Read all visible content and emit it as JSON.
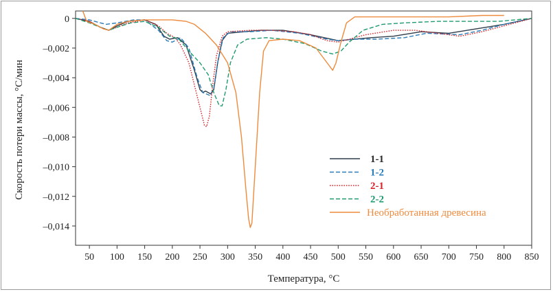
{
  "chart_data": {
    "type": "line",
    "title": "",
    "xlabel": "Температура, °С",
    "ylabel": "Скорость потери массы, °С/мин",
    "xlim": [
      25,
      850
    ],
    "ylim": [
      -0.0153,
      0.0005
    ],
    "xticks": [
      50,
      100,
      150,
      200,
      250,
      300,
      350,
      400,
      450,
      500,
      550,
      600,
      650,
      700,
      750,
      800,
      850
    ],
    "yticks": [
      0,
      -0.002,
      -0.004,
      -0.006,
      -0.008,
      -0.01,
      -0.012,
      -0.014
    ],
    "ytick_labels": [
      "0",
      "–0,002",
      "–0,004",
      "–0,006",
      "–0,008",
      "–0,010",
      "–0,012",
      "–0,014"
    ],
    "grid": false,
    "legend_position": "bottom-right",
    "series": [
      {
        "name": "1-1",
        "color": "#2f3c4a",
        "dash": "solid",
        "points": [
          [
            25,
            0
          ],
          [
            50,
            -0.0002
          ],
          [
            70,
            -0.0006
          ],
          [
            85,
            -0.0008
          ],
          [
            100,
            -0.0005
          ],
          [
            120,
            -0.0002
          ],
          [
            150,
            -0.0001
          ],
          [
            170,
            -0.0004
          ],
          [
            185,
            -0.0012
          ],
          [
            195,
            -0.0014
          ],
          [
            210,
            -0.0013
          ],
          [
            225,
            -0.0018
          ],
          [
            240,
            -0.0035
          ],
          [
            250,
            -0.0048
          ],
          [
            255,
            -0.005
          ],
          [
            260,
            -0.0049
          ],
          [
            265,
            -0.005
          ],
          [
            270,
            -0.0051
          ],
          [
            275,
            -0.0048
          ],
          [
            282,
            -0.003
          ],
          [
            290,
            -0.0015
          ],
          [
            300,
            -0.001
          ],
          [
            330,
            -0.0009
          ],
          [
            360,
            -0.0008
          ],
          [
            400,
            -0.0008
          ],
          [
            450,
            -0.0011
          ],
          [
            500,
            -0.0015
          ],
          [
            530,
            -0.0014
          ],
          [
            560,
            -0.0013
          ],
          [
            600,
            -0.0012
          ],
          [
            650,
            -0.0009
          ],
          [
            700,
            -0.001
          ],
          [
            750,
            -0.0007
          ],
          [
            800,
            -0.0004
          ],
          [
            850,
            0
          ]
        ]
      },
      {
        "name": "1-2",
        "color": "#2a7bb8",
        "dash": "dashed",
        "points": [
          [
            25,
            0
          ],
          [
            50,
            -0.0001
          ],
          [
            70,
            -0.0003
          ],
          [
            80,
            -0.0004
          ],
          [
            100,
            -0.0003
          ],
          [
            130,
            -0.0001
          ],
          [
            150,
            -0.0001
          ],
          [
            175,
            -0.0008
          ],
          [
            190,
            -0.0015
          ],
          [
            200,
            -0.0016
          ],
          [
            215,
            -0.0013
          ],
          [
            230,
            -0.002
          ],
          [
            245,
            -0.004
          ],
          [
            255,
            -0.005
          ],
          [
            262,
            -0.0051
          ],
          [
            268,
            -0.0052
          ],
          [
            275,
            -0.0047
          ],
          [
            283,
            -0.0028
          ],
          [
            292,
            -0.0013
          ],
          [
            305,
            -0.0009
          ],
          [
            340,
            -0.0009
          ],
          [
            380,
            -0.0008
          ],
          [
            430,
            -0.001
          ],
          [
            480,
            -0.0014
          ],
          [
            500,
            -0.0015
          ],
          [
            530,
            -0.0014
          ],
          [
            570,
            -0.0014
          ],
          [
            620,
            -0.0013
          ],
          [
            660,
            -0.001
          ],
          [
            720,
            -0.0011
          ],
          [
            760,
            -0.0008
          ],
          [
            800,
            -0.0004
          ],
          [
            850,
            0
          ]
        ]
      },
      {
        "name": "2-1",
        "color": "#d9232a",
        "dash": "dotted",
        "points": [
          [
            25,
            0
          ],
          [
            50,
            -0.0002
          ],
          [
            70,
            -0.0006
          ],
          [
            85,
            -0.0008
          ],
          [
            100,
            -0.0006
          ],
          [
            120,
            -0.0003
          ],
          [
            150,
            -0.0001
          ],
          [
            175,
            -0.0005
          ],
          [
            190,
            -0.001
          ],
          [
            205,
            -0.0013
          ],
          [
            215,
            -0.0018
          ],
          [
            230,
            -0.003
          ],
          [
            240,
            -0.0045
          ],
          [
            250,
            -0.006
          ],
          [
            258,
            -0.0072
          ],
          [
            262,
            -0.0073
          ],
          [
            267,
            -0.0066
          ],
          [
            273,
            -0.0045
          ],
          [
            280,
            -0.0025
          ],
          [
            290,
            -0.0012
          ],
          [
            300,
            -0.0009
          ],
          [
            340,
            -0.0008
          ],
          [
            380,
            -0.0008
          ],
          [
            420,
            -0.0009
          ],
          [
            450,
            -0.0011
          ],
          [
            480,
            -0.0015
          ],
          [
            500,
            -0.0016
          ],
          [
            520,
            -0.0014
          ],
          [
            550,
            -0.0011
          ],
          [
            600,
            -0.0008
          ],
          [
            640,
            -0.0008
          ],
          [
            680,
            -0.001
          ],
          [
            720,
            -0.0012
          ],
          [
            760,
            -0.0009
          ],
          [
            800,
            -0.0005
          ],
          [
            850,
            0
          ]
        ]
      },
      {
        "name": "2-2",
        "color": "#1e9b6e",
        "dash": "dashed",
        "points": [
          [
            25,
            0
          ],
          [
            50,
            -0.0003
          ],
          [
            70,
            -0.0006
          ],
          [
            85,
            -0.0008
          ],
          [
            100,
            -0.0006
          ],
          [
            125,
            -0.0003
          ],
          [
            150,
            -0.0002
          ],
          [
            175,
            -0.0006
          ],
          [
            195,
            -0.0012
          ],
          [
            212,
            -0.0014
          ],
          [
            230,
            -0.0022
          ],
          [
            250,
            -0.003
          ],
          [
            265,
            -0.0038
          ],
          [
            275,
            -0.005
          ],
          [
            285,
            -0.0059
          ],
          [
            290,
            -0.0059
          ],
          [
            297,
            -0.0048
          ],
          [
            305,
            -0.003
          ],
          [
            318,
            -0.0018
          ],
          [
            335,
            -0.0014
          ],
          [
            370,
            -0.0013
          ],
          [
            400,
            -0.0014
          ],
          [
            440,
            -0.0017
          ],
          [
            470,
            -0.0022
          ],
          [
            490,
            -0.0024
          ],
          [
            505,
            -0.0022
          ],
          [
            520,
            -0.0016
          ],
          [
            545,
            -0.0008
          ],
          [
            580,
            -0.0004
          ],
          [
            620,
            -0.0003
          ],
          [
            680,
            -0.0002
          ],
          [
            740,
            -0.0002
          ],
          [
            790,
            -0.0002
          ],
          [
            820,
            -0.0001
          ],
          [
            850,
            0
          ]
        ]
      },
      {
        "name": "Необработанная древесина",
        "color": "#ee8a3c",
        "dash": "solid",
        "points": [
          [
            38,
            0.0005
          ],
          [
            40,
            0.0003
          ],
          [
            45,
            -0.0002
          ],
          [
            60,
            -0.0004
          ],
          [
            75,
            -0.0007
          ],
          [
            85,
            -0.0008
          ],
          [
            100,
            -0.0004
          ],
          [
            120,
            -0.0002
          ],
          [
            150,
            -0.0001
          ],
          [
            200,
            -0.0001
          ],
          [
            225,
            -0.0002
          ],
          [
            240,
            -0.0004
          ],
          [
            260,
            -0.001
          ],
          [
            280,
            -0.0018
          ],
          [
            300,
            -0.003
          ],
          [
            315,
            -0.005
          ],
          [
            325,
            -0.008
          ],
          [
            333,
            -0.0115
          ],
          [
            338,
            -0.0135
          ],
          [
            341,
            -0.0141
          ],
          [
            344,
            -0.0138
          ],
          [
            350,
            -0.01
          ],
          [
            358,
            -0.005
          ],
          [
            365,
            -0.0022
          ],
          [
            375,
            -0.0015
          ],
          [
            400,
            -0.0014
          ],
          [
            430,
            -0.0015
          ],
          [
            460,
            -0.002
          ],
          [
            480,
            -0.003
          ],
          [
            490,
            -0.0035
          ],
          [
            496,
            -0.003
          ],
          [
            505,
            -0.0016
          ],
          [
            515,
            -0.0003
          ],
          [
            530,
            0.0001
          ],
          [
            600,
            0.0001
          ],
          [
            700,
            0.0001
          ],
          [
            760,
            0.0002
          ],
          [
            790,
            0.0002
          ],
          [
            800,
            0.0002
          ]
        ]
      }
    ]
  }
}
